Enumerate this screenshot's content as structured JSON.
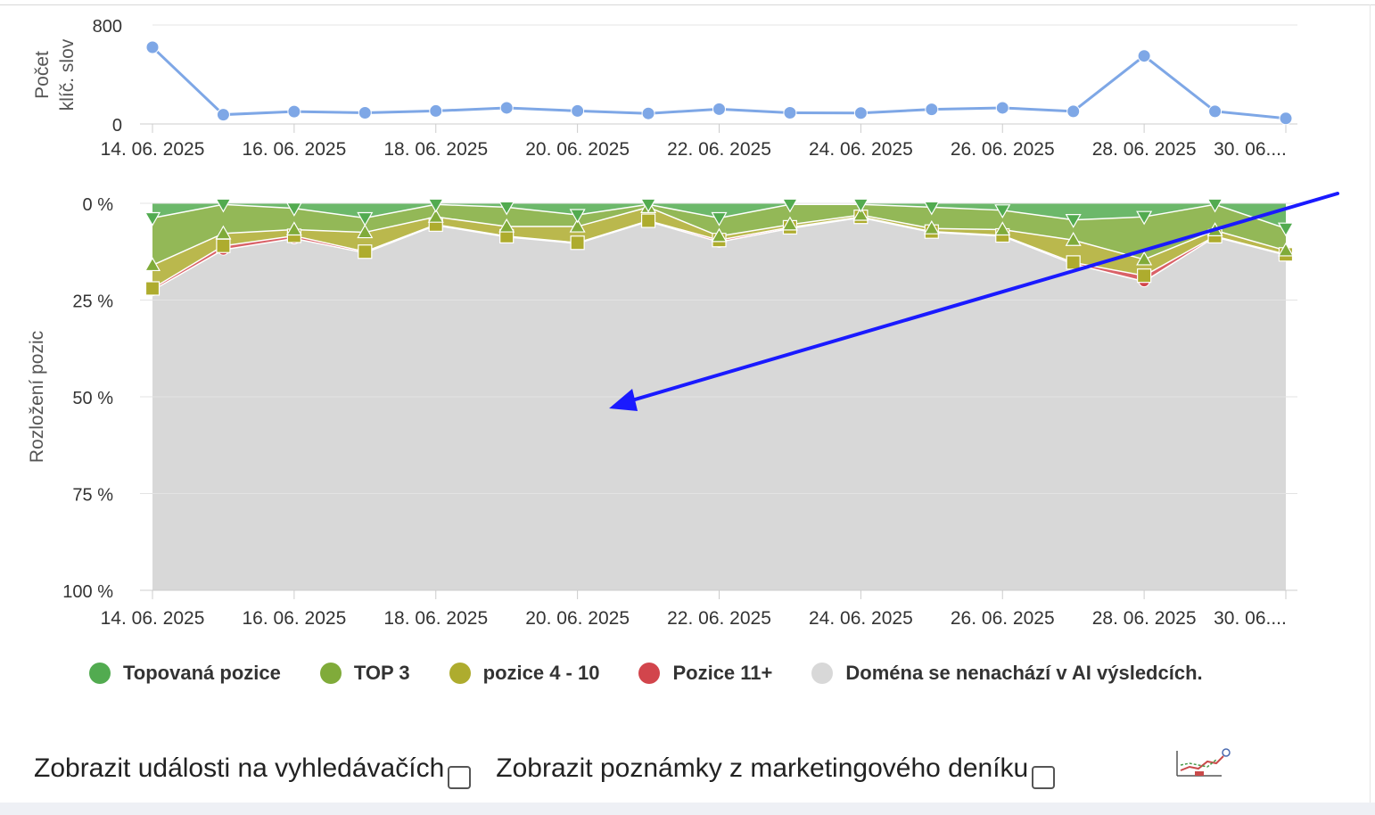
{
  "colors": {
    "line_series": "#7ea7e6",
    "topovana": "#52ab50",
    "top3": "#80ab3a",
    "pozice4_10": "#aeac2e",
    "pozice11": "#d2454c",
    "domena": "#d8d8d8",
    "arrow": "#1a1aff"
  },
  "icons": {
    "settings_chart": "chart-settings-icon"
  },
  "chart_data": [
    {
      "type": "line",
      "ylabel_lines": [
        "Počet",
        "klíč. slov"
      ],
      "ylim": [
        0,
        800
      ],
      "yticks": [
        "0",
        "800"
      ],
      "x": [
        "14. 06. 2025",
        "15. 06. 2025",
        "16. 06. 2025",
        "17. 06. 2025",
        "18. 06. 2025",
        "19. 06. 2025",
        "20. 06. 2025",
        "21. 06. 2025",
        "22. 06. 2025",
        "23. 06. 2025",
        "24. 06. 2025",
        "25. 06. 2025",
        "26. 06. 2025",
        "27. 06. 2025",
        "28. 06. 2025",
        "29. 06. 2025",
        "30. 06. 2025"
      ],
      "xticks": [
        "14. 06. 2025",
        "16. 06. 2025",
        "18. 06. 2025",
        "20. 06. 2025",
        "22. 06. 2025",
        "24. 06. 2025",
        "26. 06. 2025",
        "28. 06. 2025",
        "30. 06...."
      ],
      "series": [
        {
          "values": [
            620,
            75,
            100,
            90,
            105,
            130,
            105,
            85,
            120,
            90,
            88,
            118,
            130,
            102,
            550,
            102,
            45
          ]
        }
      ],
      "grid": true
    },
    {
      "type": "area",
      "stacked": true,
      "ylabel": "Rozložení pozic",
      "ylim": [
        0,
        100
      ],
      "inverted_y": true,
      "yticks": [
        "0 %",
        "25 %",
        "50 %",
        "75 %",
        "100 %"
      ],
      "x": [
        "14. 06. 2025",
        "15. 06. 2025",
        "16. 06. 2025",
        "17. 06. 2025",
        "18. 06. 2025",
        "19. 06. 2025",
        "20. 06. 2025",
        "21. 06. 2025",
        "22. 06. 2025",
        "23. 06. 2025",
        "24. 06. 2025",
        "25. 06. 2025",
        "26. 06. 2025",
        "27. 06. 2025",
        "28. 06. 2025",
        "29. 06. 2025",
        "30. 06. 2025"
      ],
      "xticks": [
        "14. 06. 2025",
        "16. 06. 2025",
        "18. 06. 2025",
        "20. 06. 2025",
        "22. 06. 2025",
        "24. 06. 2025",
        "26. 06. 2025",
        "28. 06. 2025",
        "30. 06...."
      ],
      "series": [
        {
          "name": "Topovaná pozice",
          "values": [
            3.8,
            0.3,
            1.3,
            3.8,
            0.3,
            1.0,
            3.0,
            0.3,
            3.8,
            0.3,
            0.3,
            1.0,
            1.8,
            4.3,
            3.5,
            0.3,
            6.5
          ]
        },
        {
          "name": "TOP 3",
          "values": [
            12.2,
            7.5,
            5.5,
            3.7,
            3.2,
            5.0,
            3.0,
            0.7,
            4.7,
            5.2,
            2.7,
            5.5,
            5.0,
            5.2,
            11.0,
            6.7,
            5.7
          ]
        },
        {
          "name": "pozice 4 - 10",
          "values": [
            6.0,
            3.2,
            1.6,
            5.0,
            2.0,
            2.5,
            4.2,
            3.5,
            1.0,
            0.7,
            0.5,
            0.8,
            1.5,
            5.8,
            4.2,
            1.5,
            1.0
          ]
        },
        {
          "name": "Pozice 11+",
          "values": [
            0.5,
            1.0,
            0.7,
            0.3,
            0.2,
            0.2,
            0.2,
            0.2,
            0.5,
            0.3,
            0.2,
            0.2,
            0.2,
            0.4,
            1.5,
            0.2,
            0.2
          ]
        },
        {
          "name": "Doména se nenachází v AI výsledcích.",
          "values": [
            77.5,
            88.0,
            90.9,
            87.2,
            94.3,
            91.3,
            89.6,
            95.3,
            90.0,
            93.5,
            96.3,
            92.5,
            91.5,
            84.3,
            79.8,
            91.3,
            86.6
          ]
        }
      ],
      "annotation": {
        "type": "arrow",
        "from": [
          "30. 06. 2025",
          0
        ],
        "to": [
          "21. 06. 2025",
          53
        ]
      },
      "grid": true
    }
  ],
  "legend": [
    {
      "label": "Topovaná pozice",
      "color": "#52ab50"
    },
    {
      "label": "TOP 3",
      "color": "#80ab3a"
    },
    {
      "label": "pozice 4 - 10",
      "color": "#aeac2e"
    },
    {
      "label": "Pozice 11+",
      "color": "#d2454c"
    },
    {
      "label": "Doména se nenachází v AI výsledcích.",
      "color": "#d8d8d8"
    }
  ],
  "options": {
    "events_label": "Zobrazit události na vyhledávačích",
    "notes_label": "Zobrazit poznámky z marketingového deníku"
  }
}
